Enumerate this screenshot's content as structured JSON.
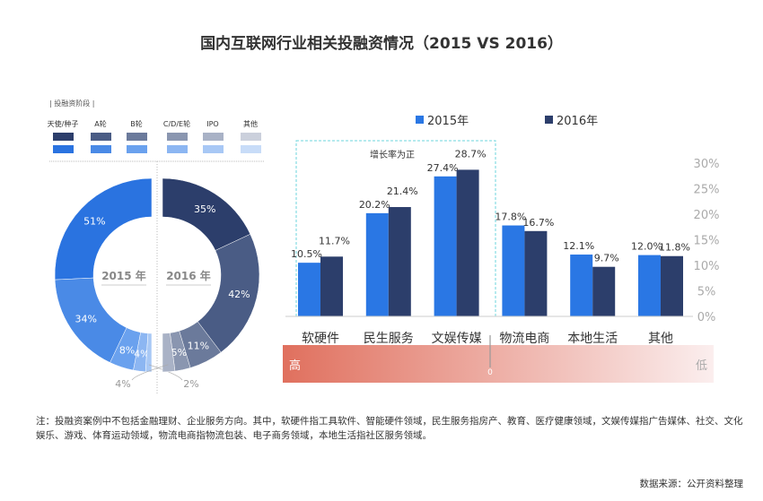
{
  "title": "国内互联网行业相关投融资情况（2015 VS 2016）",
  "stage_legend": {
    "title": "| 投融资阶段 |",
    "items": [
      {
        "label": "天使/种子",
        "color_2016": "#2c3e6b",
        "color_2015": "#2a73e0"
      },
      {
        "label": "A轮",
        "color_2016": "#4a5c85",
        "color_2015": "#4a8ae6"
      },
      {
        "label": "B轮",
        "color_2016": "#6b7a9b",
        "color_2015": "#6aa1ee"
      },
      {
        "label": "C/D/E轮",
        "color_2016": "#8a96b0",
        "color_2015": "#8cb6f2"
      },
      {
        "label": "IPO",
        "color_2016": "#a9b2c6",
        "color_2015": "#a8c8f5"
      },
      {
        "label": "其他",
        "color_2016": "#cbd0dc",
        "color_2015": "#c8dcf8"
      }
    ]
  },
  "chart_data": [
    {
      "type": "pie",
      "subtype": "half-donut",
      "title": "2015 年",
      "values": [
        51,
        34,
        8,
        4,
        2
      ],
      "labels": [
        "51%",
        "34%",
        "8%",
        "4%",
        "2%"
      ],
      "colors": [
        "#2a73e0",
        "#4a8ae6",
        "#6aa1ee",
        "#8cb6f2",
        "#a8c8f5"
      ]
    },
    {
      "type": "pie",
      "subtype": "half-donut",
      "title": "2016 年",
      "values": [
        35,
        42,
        11,
        5,
        4
      ],
      "labels": [
        "35%",
        "42%",
        "11%",
        "5%",
        "4%"
      ],
      "colors": [
        "#2c3e6b",
        "#4a5c85",
        "#6b7a9b",
        "#8a96b0",
        "#a9b2c6"
      ]
    },
    {
      "type": "bar",
      "categories": [
        "软硬件",
        "民生服务",
        "文娱传媒",
        "物流电商",
        "本地生活",
        "其他"
      ],
      "series": [
        {
          "name": "2015年",
          "values": [
            10.5,
            20.2,
            27.4,
            17.8,
            12.1,
            12.0
          ],
          "labels": [
            "10.5%",
            "20.2%",
            "27.4%",
            "17.8%",
            "12.1%",
            "12.0%"
          ],
          "color": "#2a77e4"
        },
        {
          "name": "2016年",
          "values": [
            11.7,
            21.4,
            28.7,
            16.7,
            9.7,
            11.8
          ],
          "labels": [
            "11.7%",
            "21.4%",
            "28.7%",
            "16.7%",
            "9.7%",
            "11.8%"
          ],
          "color": "#2c3e6b"
        }
      ],
      "ylim": [
        0,
        30
      ],
      "yticks": [
        "0%",
        "5%",
        "10%",
        "15%",
        "20%",
        "25%",
        "30%"
      ],
      "yaxis_position": "right",
      "legend": "top",
      "grid": false,
      "annotation": "增长率为正",
      "gradient_scale": {
        "high": "高",
        "zero": "0",
        "low": "低",
        "color_high": "#e0705e",
        "color_low": "#fbeeee"
      }
    }
  ],
  "note": "注：投融资案例中不包括金融理财、企业服务方向。其中，软硬件指工具软件、智能硬件领域，民生服务指房产、教育、医疗健康领域，文娱传媒指广告媒体、社交、文化娱乐、游戏、体育运动领域，物流电商指物流包装、电子商务领域，本地生活指社区服务领域。",
  "source": "数据来源：公开资料整理"
}
